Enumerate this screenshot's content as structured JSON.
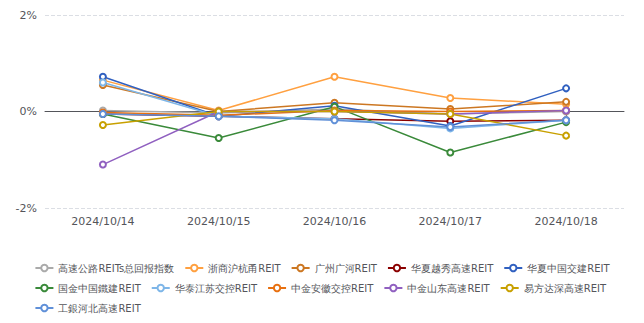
{
  "chart_data": {
    "type": "line",
    "categories": [
      "2024/10/14",
      "2024/10/15",
      "2024/10/16",
      "2024/10/17",
      "2024/10/18"
    ],
    "series": [
      {
        "name": "高速公路REITs总回报指数",
        "color": "#aaaaaa",
        "values": [
          0.02,
          -0.03,
          0.05,
          -0.05,
          0.0
        ]
      },
      {
        "name": "浙商沪杭甬REIT",
        "color": "#FFA040",
        "values": [
          0.65,
          0.02,
          0.72,
          0.28,
          0.15
        ]
      },
      {
        "name": "广州广河REIT",
        "color": "#CC7722",
        "values": [
          0.55,
          0.0,
          0.18,
          0.05,
          0.2
        ]
      },
      {
        "name": "华夏越秀高速REIT",
        "color": "#8B0000",
        "values": [
          -0.05,
          -0.1,
          -0.15,
          -0.2,
          -0.18
        ]
      },
      {
        "name": "华夏中国交建REIT",
        "color": "#3060C0",
        "values": [
          0.72,
          -0.1,
          0.12,
          -0.3,
          0.48
        ]
      },
      {
        "name": "国金中国鐵建REIT",
        "color": "#3A8A3A",
        "values": [
          -0.05,
          -0.55,
          0.1,
          -0.85,
          -0.22
        ]
      },
      {
        "name": "华泰江苏交控REIT",
        "color": "#7EB6E8",
        "values": [
          0.6,
          -0.1,
          -0.15,
          -0.35,
          -0.18
        ]
      },
      {
        "name": "中金安徽交控REIT",
        "color": "#E87010",
        "values": [
          -0.02,
          -0.08,
          0.02,
          0.0,
          0.02
        ]
      },
      {
        "name": "中金山东高速REIT",
        "color": "#9060C0",
        "values": [
          -1.1,
          0.0,
          0.0,
          -0.05,
          0.02
        ]
      },
      {
        "name": "易方达深高速REIT",
        "color": "#C8A000",
        "values": [
          -0.28,
          0.0,
          0.0,
          -0.05,
          -0.5
        ]
      },
      {
        "name": "工銀河北高速REIT",
        "color": "#6090D8",
        "values": [
          -0.05,
          -0.1,
          -0.18,
          -0.32,
          -0.18
        ]
      }
    ],
    "marker": "circle",
    "ylim": [
      -2.0,
      2.0
    ],
    "yticks": [
      {
        "value": -2.0,
        "label": "-2%"
      },
      {
        "value": 0.0,
        "label": "0%"
      },
      {
        "value": 2.0,
        "label": "2%"
      }
    ],
    "grid": true,
    "legend": "bottom"
  }
}
